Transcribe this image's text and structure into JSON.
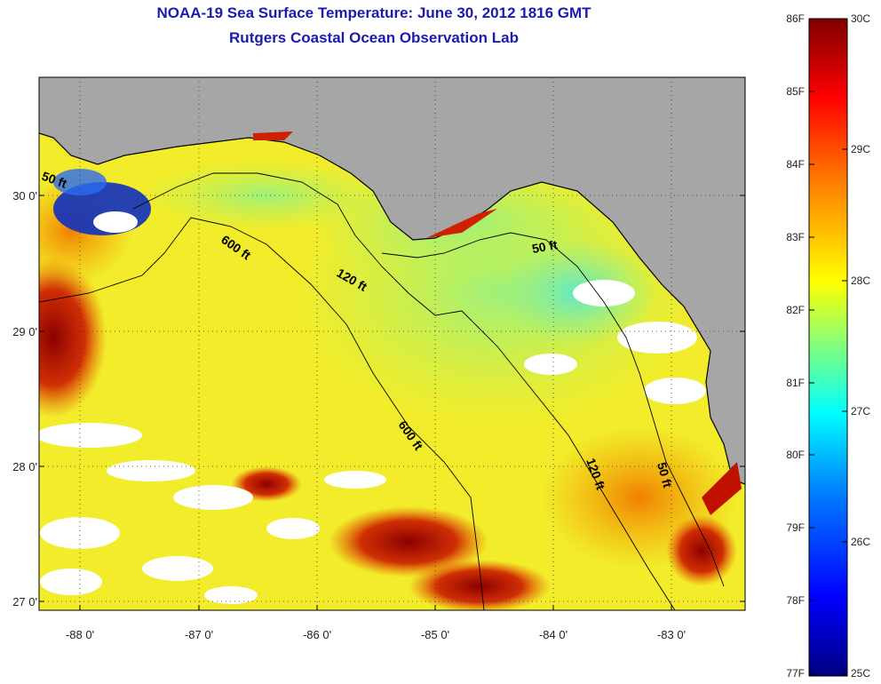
{
  "header": {
    "title": "NOAA-19 Sea Surface Temperature:  June 30, 2012 1816 GMT",
    "subtitle": "Rutgers Coastal Ocean Observation Lab"
  },
  "axes": {
    "lon_ticks": [
      "-88 0'",
      "-87 0'",
      "-86 0'",
      "-85 0'",
      "-84 0'",
      "-83 0'"
    ],
    "lat_ticks": [
      "30 0'",
      "29 0'",
      "28 0'",
      "27 0'"
    ]
  },
  "isobaths": {
    "label_600_a": "600 ft",
    "label_120_a": "120 ft",
    "label_50_a": "50 ft",
    "label_50_west": "50 ft",
    "label_600_b": "600 ft",
    "label_120_b": "120 ft",
    "label_50_b": "50 ft"
  },
  "colorbar": {
    "f_labels": [
      "86F",
      "85F",
      "84F",
      "83F",
      "82F",
      "81F",
      "80F",
      "79F",
      "78F",
      "77F"
    ],
    "c_labels": [
      "30C",
      "29C",
      "28C",
      "27C",
      "26C",
      "25C"
    ]
  },
  "colors": {
    "land": "#a6a6a6",
    "title": "#1b1bb0",
    "scale": [
      "#00007f",
      "#0000ff",
      "#007fff",
      "#00ffff",
      "#7fff7f",
      "#ffff00",
      "#ff7f00",
      "#ff0000",
      "#7f0000"
    ]
  }
}
